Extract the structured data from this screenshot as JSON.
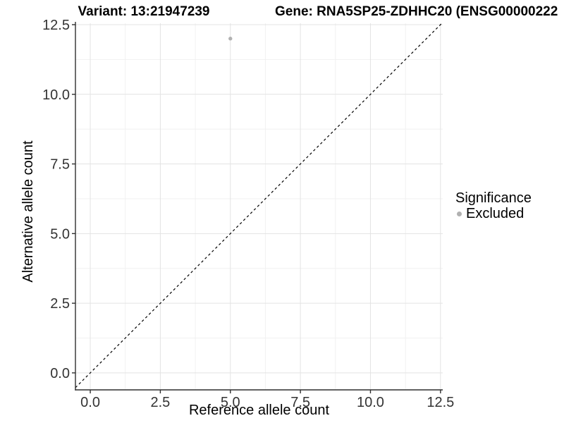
{
  "chart_data": {
    "type": "scatter",
    "title_left": "Variant: 13:21947239",
    "title_right": "Gene: RNA5SP25-ZDHHC20 (ENSG00000222",
    "xlabel": "Reference allele count",
    "ylabel": "Alternative allele count",
    "x_tick_values": [
      0,
      2.5,
      5,
      7.5,
      10,
      12.5
    ],
    "x_tick_labels": [
      "0.0",
      "2.5",
      "5.0",
      "7.5",
      "10.0",
      "12.5"
    ],
    "y_tick_values": [
      0,
      2.5,
      5,
      7.5,
      10,
      12.5
    ],
    "y_tick_labels": [
      "0.0",
      "2.5",
      "5.0",
      "7.5",
      "10.0",
      "12.5"
    ],
    "x_minor_ticks": [
      1.25,
      3.75,
      6.25,
      8.75,
      11.25
    ],
    "y_minor_ticks": [
      1.25,
      3.75,
      6.25,
      8.75,
      11.25
    ],
    "xlim": [
      -0.53,
      12.58
    ],
    "ylim": [
      -0.61,
      12.55
    ],
    "grid": true,
    "legend_position": "right",
    "series": [
      {
        "name": "Excluded",
        "color": "#b1b1b1",
        "points": [
          {
            "x": 5,
            "y": 12
          }
        ]
      }
    ],
    "reference_line": {
      "slope": 1,
      "intercept": 0,
      "style": "dashed",
      "color": "#000000"
    },
    "legend": {
      "title": "Significance",
      "items": [
        {
          "label": "Excluded",
          "marker_color": "#b1b1b1"
        }
      ]
    },
    "colors": {
      "grid_major": "#e3e3e3",
      "grid_minor": "#f1f1f1",
      "axis": "#2f2f2f",
      "tick_label": "#333333"
    }
  }
}
